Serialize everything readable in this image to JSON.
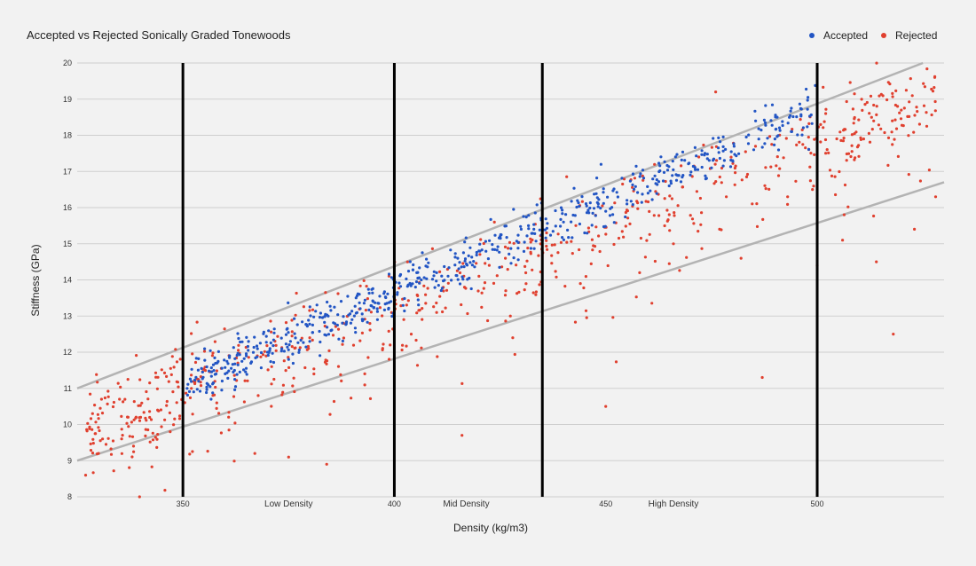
{
  "chart_data": {
    "type": "scatter",
    "title": "Accepted vs Rejected Sonically Graded Tonewoods",
    "xlabel": "Density (kg/m3)",
    "ylabel": "Stiffness (GPa)",
    "xlim": [
      325,
      530
    ],
    "ylim": [
      8,
      20
    ],
    "x_ticks": [
      350,
      400,
      450,
      500
    ],
    "y_ticks": [
      8,
      9,
      10,
      11,
      12,
      13,
      14,
      15,
      16,
      17,
      18,
      19,
      20
    ],
    "grid": "horizontal",
    "legend_position": "top-right",
    "colors": {
      "accepted": "#2255c4",
      "rejected": "#e0402f",
      "envelope": "#b3b3b3",
      "divider": "#000000",
      "background": "#f2f2f2"
    },
    "region_dividers": [
      350,
      400,
      435,
      500
    ],
    "region_labels": [
      {
        "text": "Low Density",
        "x": 375
      },
      {
        "text": "Mid Density",
        "x": 417
      },
      {
        "text": "High Density",
        "x": 466
      }
    ],
    "envelope_lines": [
      {
        "name": "upper",
        "x": [
          325,
          525
        ],
        "y": [
          11.0,
          20.0
        ]
      },
      {
        "name": "lower",
        "x": [
          325,
          530
        ],
        "y": [
          9.0,
          16.7
        ]
      }
    ],
    "series": [
      {
        "name": "Accepted",
        "color": "#2255c4",
        "trend": {
          "x0": 350,
          "y0": 11.1,
          "slope": 0.0505
        },
        "x_range": [
          351,
          500
        ],
        "spread": 0.9,
        "count": 620,
        "points": [
          [
            351,
            11.0
          ],
          [
            356,
            11.1
          ],
          [
            360,
            11.4
          ],
          [
            365,
            11.9
          ],
          [
            370,
            12.0
          ],
          [
            375,
            11.8
          ],
          [
            380,
            12.3
          ],
          [
            385,
            12.6
          ],
          [
            390,
            12.9
          ],
          [
            395,
            13.4
          ],
          [
            400,
            13.5
          ],
          [
            405,
            13.8
          ],
          [
            410,
            14.2
          ],
          [
            415,
            14.6
          ],
          [
            420,
            14.8
          ],
          [
            425,
            15.2
          ],
          [
            430,
            15.4
          ],
          [
            435,
            15.1
          ],
          [
            440,
            15.6
          ],
          [
            445,
            15.3
          ],
          [
            450,
            15.9
          ],
          [
            455,
            16.1
          ],
          [
            460,
            16.4
          ],
          [
            465,
            16.6
          ],
          [
            470,
            16.9
          ],
          [
            475,
            17.1
          ],
          [
            480,
            17.3
          ],
          [
            485,
            17.6
          ],
          [
            490,
            17.9
          ],
          [
            494,
            18.1
          ]
        ]
      },
      {
        "name": "Rejected",
        "color": "#e0402f",
        "trend": {
          "x0": 350,
          "y0": 10.9,
          "slope": 0.046
        },
        "x_range": [
          327,
          528
        ],
        "spread": 1.6,
        "count": 700,
        "points": [
          [
            327,
            8.6
          ],
          [
            331,
            9.6
          ],
          [
            335,
            10.7
          ],
          [
            340,
            10.2
          ],
          [
            344,
            10.4
          ],
          [
            347,
            9.8
          ],
          [
            352,
            11.0
          ],
          [
            358,
            10.6
          ],
          [
            363,
            11.7
          ],
          [
            367,
            9.2
          ],
          [
            371,
            11.6
          ],
          [
            375,
            9.1
          ],
          [
            380,
            12.4
          ],
          [
            384,
            8.9
          ],
          [
            388,
            12.8
          ],
          [
            393,
            11.4
          ],
          [
            399,
            12.2
          ],
          [
            404,
            12.5
          ],
          [
            410,
            13.1
          ],
          [
            416,
            9.7
          ],
          [
            420,
            14.1
          ],
          [
            428,
            12.4
          ],
          [
            436,
            15.3
          ],
          [
            444,
            13.9
          ],
          [
            450,
            10.5
          ],
          [
            458,
            14.2
          ],
          [
            466,
            15.0
          ],
          [
            472,
            17.4
          ],
          [
            476,
            19.2
          ],
          [
            482,
            14.6
          ],
          [
            487,
            11.3
          ],
          [
            493,
            16.3
          ],
          [
            500,
            14.4
          ],
          [
            502,
            18.6
          ],
          [
            506,
            15.1
          ],
          [
            511,
            17.9
          ],
          [
            514,
            14.5
          ],
          [
            518,
            12.5
          ],
          [
            519,
            18.8
          ],
          [
            523,
            15.4
          ],
          [
            528,
            16.3
          ]
        ]
      }
    ]
  }
}
